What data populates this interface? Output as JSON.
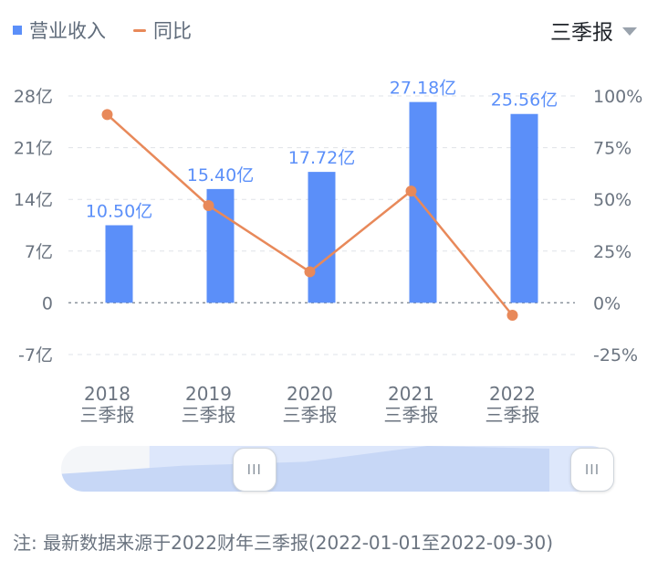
{
  "legend": {
    "bar_label": "营业收入",
    "line_label": "同比"
  },
  "period_selector": {
    "value": "三季报"
  },
  "slider": {
    "left_handle": "III",
    "right_handle": "III",
    "selection_start": 0.16,
    "selection_end": 1.0
  },
  "footnote": "注: 最新数据来源于2022财年三季报(2022-01-01至2022-09-30)",
  "colors": {
    "bar": "#5b8ff9",
    "line": "#e8895a",
    "bar_label": "#5b8ff9"
  },
  "chart_data": {
    "type": "bar",
    "categories": [
      [
        "2018",
        "三季报"
      ],
      [
        "2019",
        "三季报"
      ],
      [
        "2020",
        "三季报"
      ],
      [
        "2021",
        "三季报"
      ],
      [
        "2022",
        "三季报"
      ]
    ],
    "series": [
      {
        "name": "营业收入",
        "type": "bar",
        "values": [
          10.5,
          15.4,
          17.72,
          27.18,
          25.56
        ],
        "labels": [
          "10.50亿",
          "15.40亿",
          "17.72亿",
          "27.18亿",
          "25.56亿"
        ]
      },
      {
        "name": "同比",
        "type": "line",
        "axis": "right",
        "values": [
          91,
          47,
          15,
          54,
          -6
        ]
      }
    ],
    "y_left": {
      "ticks": [
        "28亿",
        "21亿",
        "14亿",
        "7亿",
        "0",
        "-7亿"
      ],
      "values": [
        28,
        21,
        14,
        7,
        0,
        -7
      ],
      "range": [
        -7,
        28
      ]
    },
    "y_right": {
      "ticks": [
        "100%",
        "75%",
        "50%",
        "25%",
        "0%",
        "-25%"
      ],
      "values": [
        100,
        75,
        50,
        25,
        0,
        -25
      ],
      "range": [
        -25,
        100
      ]
    }
  }
}
